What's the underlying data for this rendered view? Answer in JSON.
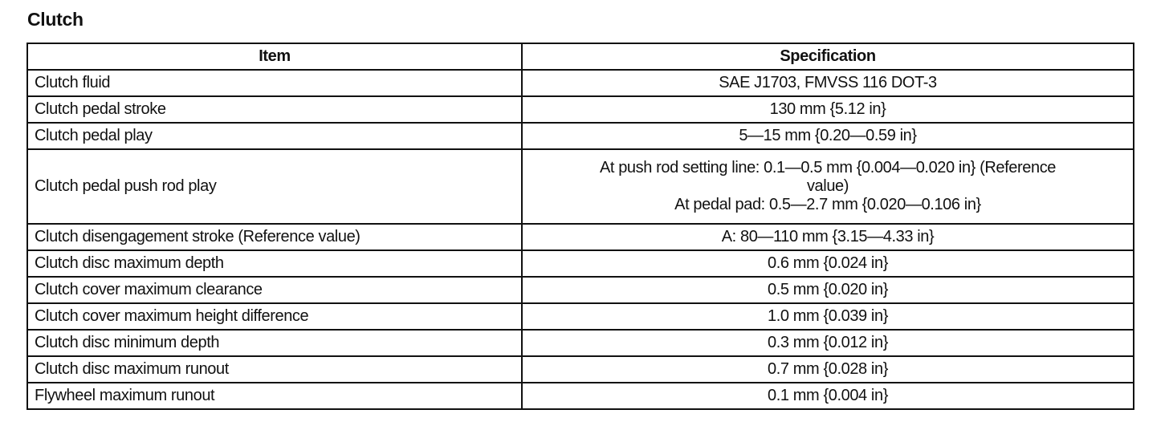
{
  "title": "Clutch",
  "table": {
    "headers": [
      "Item",
      "Specification"
    ],
    "rows": [
      {
        "item": "Clutch fluid",
        "spec": "SAE J1703, FMVSS 116 DOT-3"
      },
      {
        "item": "Clutch pedal stroke",
        "spec": "130 mm {5.12 in}"
      },
      {
        "item": "Clutch pedal play",
        "spec": "5—15 mm {0.20—0.59 in}"
      },
      {
        "item": "Clutch pedal push rod play",
        "spec_lines": [
          "At push rod setting line: 0.1—0.5 mm {0.004—0.020 in} (Reference",
          "value)",
          "At pedal pad: 0.5—2.7 mm {0.020—0.106 in}"
        ]
      },
      {
        "item": "Clutch disengagement stroke (Reference value)",
        "spec": "A: 80—110 mm {3.15—4.33 in}"
      },
      {
        "item": "Clutch disc maximum depth",
        "spec": "0.6 mm {0.024 in}"
      },
      {
        "item": "Clutch cover maximum clearance",
        "spec": "0.5 mm {0.020 in}"
      },
      {
        "item": "Clutch cover maximum height difference",
        "spec": "1.0 mm {0.039 in}"
      },
      {
        "item": "Clutch disc minimum depth",
        "spec": "0.3 mm {0.012 in}"
      },
      {
        "item": "Clutch disc maximum runout",
        "spec": "0.7 mm {0.028 in}"
      },
      {
        "item": "Flywheel maximum runout",
        "spec": "0.1 mm {0.004 in}"
      }
    ]
  }
}
